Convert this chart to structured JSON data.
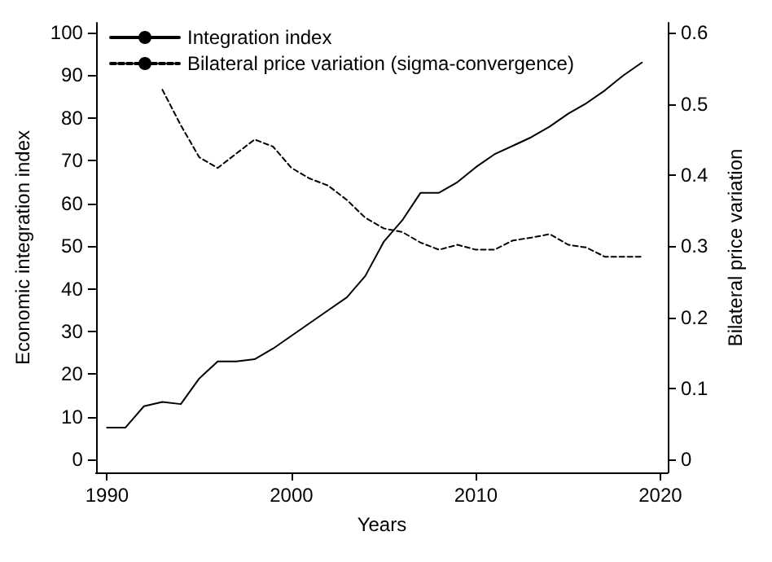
{
  "chart_data": {
    "type": "line",
    "xlabel": "Years",
    "ylabel": "Economic integration index",
    "y2label": "Bilateral price variation",
    "x": [
      1990,
      1991,
      1992,
      1993,
      1994,
      1995,
      1996,
      1997,
      1998,
      1999,
      2000,
      2001,
      2002,
      2003,
      2004,
      2005,
      2006,
      2007,
      2008,
      2009,
      2010,
      2011,
      2012,
      2013,
      2014,
      2015,
      2016,
      2017,
      2018,
      2019
    ],
    "series": [
      {
        "name": "Integration index",
        "color": "#000000",
        "line_style": "solid",
        "values": [
          7.5,
          7.5,
          12.5,
          13.5,
          13,
          19,
          23,
          23,
          23.5,
          26,
          29,
          32,
          35,
          38,
          43,
          51,
          56,
          62.5,
          62.5,
          65,
          68.5,
          71.5,
          73.5,
          75.5,
          78,
          81,
          83.5,
          86.5,
          90,
          93
        ]
      },
      {
        "name": "Bilateral price variation (sigma-convergence)",
        "color": "#000000",
        "line_style": "dashed",
        "axis": "y2",
        "values": [
          null,
          null,
          null,
          0.52,
          0.47,
          0.425,
          0.41,
          0.43,
          0.45,
          0.44,
          0.41,
          0.395,
          0.385,
          0.365,
          0.34,
          0.325,
          0.32,
          0.305,
          0.295,
          0.302,
          0.295,
          0.295,
          0.308,
          0.312,
          0.317,
          0.302,
          0.298,
          0.285,
          0.285,
          0.285
        ]
      }
    ],
    "xlim": [
      1989.4,
      2020.4
    ],
    "xticks": [
      1990,
      2000,
      2010,
      2020
    ],
    "ylim": [
      -3,
      102.3
    ],
    "yticks": [
      0,
      10,
      20,
      30,
      40,
      50,
      60,
      70,
      80,
      90,
      100
    ],
    "y2lim": [
      -0.018,
      0.614
    ],
    "y2ticks": [
      0,
      0.1,
      0.2,
      0.3,
      0.4,
      0.5,
      0.6
    ],
    "grid": false,
    "legend": "top left",
    "marker": "none"
  }
}
